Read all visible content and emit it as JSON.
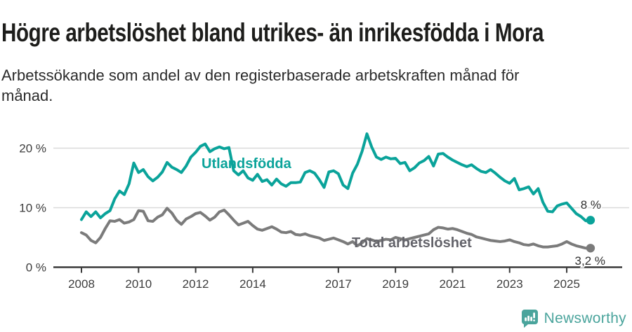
{
  "header": {
    "title": "Högre arbetslöshet bland utrikes- än inrikesfödda i Mora",
    "subtitle": "Arbetssökande som andel av den registerbaserade arbetskraften månad för månad."
  },
  "footer": {
    "brand": "Newsworthy",
    "brand_color": "#4aa49c"
  },
  "colors": {
    "axis": "#3b3b3b",
    "grid": "#dadada",
    "tick_text": "#3d3d3d",
    "end_label_text": "#303030",
    "title_text": "#1d1d1b",
    "subtitle_text": "#2b2b2b"
  },
  "chart_data": {
    "type": "line",
    "title": "Högre arbetslöshet bland utrikes- än inrikesfödda i Mora",
    "subtitle": "Arbetssökande som andel av den registerbaserade arbetskraften månad för månad.",
    "unit": "%",
    "grid": "horizontal",
    "legend": "inline-labels",
    "x_start": 2008.0,
    "x_step_years": 0.1666667,
    "x_axis_ticks": [
      2008,
      2010,
      2012,
      2014,
      2017,
      2019,
      2021,
      2023,
      2025
    ],
    "y_axis_ticks": [
      {
        "value": 0,
        "label": "0 %"
      },
      {
        "value": 10,
        "label": "10 %"
      },
      {
        "value": 20,
        "label": "20 %"
      }
    ],
    "ylim": [
      0,
      24
    ],
    "series": [
      {
        "name": "Utlandsfödda",
        "color": "#0aa39a",
        "label_color": "#0aa39a",
        "end_label": "8 %",
        "end_value": 7.9,
        "values": [
          8.0,
          9.3,
          8.5,
          9.3,
          8.3,
          9.0,
          9.5,
          11.5,
          12.8,
          12.2,
          14.0,
          17.5,
          15.9,
          16.4,
          15.2,
          14.5,
          15.1,
          16.0,
          17.6,
          16.8,
          16.4,
          15.9,
          17.0,
          18.5,
          19.3,
          20.3,
          20.7,
          19.4,
          19.9,
          20.2,
          19.9,
          20.1,
          16.2,
          15.5,
          16.2,
          15.0,
          14.6,
          15.6,
          14.4,
          14.7,
          13.8,
          14.8,
          14.0,
          13.6,
          14.2,
          14.2,
          14.3,
          15.9,
          16.2,
          15.8,
          14.7,
          13.4,
          16.0,
          16.2,
          15.7,
          13.8,
          13.2,
          15.8,
          17.3,
          19.5,
          22.4,
          20.2,
          18.5,
          18.1,
          18.5,
          18.2,
          18.3,
          17.4,
          17.6,
          16.2,
          16.7,
          17.5,
          17.9,
          18.6,
          17.0,
          19.0,
          19.1,
          18.5,
          18.0,
          17.6,
          17.2,
          16.9,
          17.2,
          16.6,
          16.1,
          15.9,
          16.4,
          15.8,
          15.1,
          14.5,
          14.1,
          14.9,
          13.0,
          13.2,
          13.5,
          12.3,
          13.2,
          10.9,
          9.4,
          9.3,
          10.3,
          10.6,
          10.8,
          9.9,
          9.0,
          8.5,
          7.8,
          7.9
        ]
      },
      {
        "name": "Total arbetslöshet",
        "color": "#7b7b7b",
        "label_color": "#63636a",
        "end_label": "3,2 %",
        "end_value": 3.2,
        "values": [
          5.8,
          5.4,
          4.5,
          4.1,
          5.0,
          6.5,
          7.8,
          7.7,
          8.0,
          7.4,
          7.6,
          8.0,
          9.5,
          9.4,
          7.8,
          7.7,
          8.4,
          8.8,
          9.9,
          9.1,
          7.9,
          7.2,
          8.1,
          8.5,
          9.0,
          9.2,
          8.6,
          7.9,
          8.4,
          9.3,
          9.6,
          8.8,
          7.9,
          7.1,
          7.4,
          7.7,
          7.0,
          6.4,
          6.2,
          6.5,
          6.8,
          6.4,
          5.9,
          5.8,
          6.0,
          5.5,
          5.4,
          5.6,
          5.3,
          5.1,
          4.9,
          4.5,
          4.7,
          4.9,
          4.6,
          4.3,
          3.9,
          4.3,
          3.6,
          4.1,
          4.8,
          4.6,
          4.3,
          4.5,
          4.7,
          4.6,
          5.0,
          4.8,
          4.6,
          4.8,
          5.0,
          5.2,
          5.4,
          5.6,
          6.3,
          6.7,
          6.6,
          6.4,
          6.5,
          6.3,
          6.0,
          5.7,
          5.5,
          5.1,
          4.9,
          4.7,
          4.5,
          4.4,
          4.3,
          4.4,
          4.6,
          4.3,
          4.1,
          3.8,
          3.7,
          3.9,
          3.6,
          3.4,
          3.4,
          3.5,
          3.6,
          3.9,
          4.3,
          3.9,
          3.6,
          3.4,
          3.2,
          3.2
        ]
      }
    ]
  }
}
